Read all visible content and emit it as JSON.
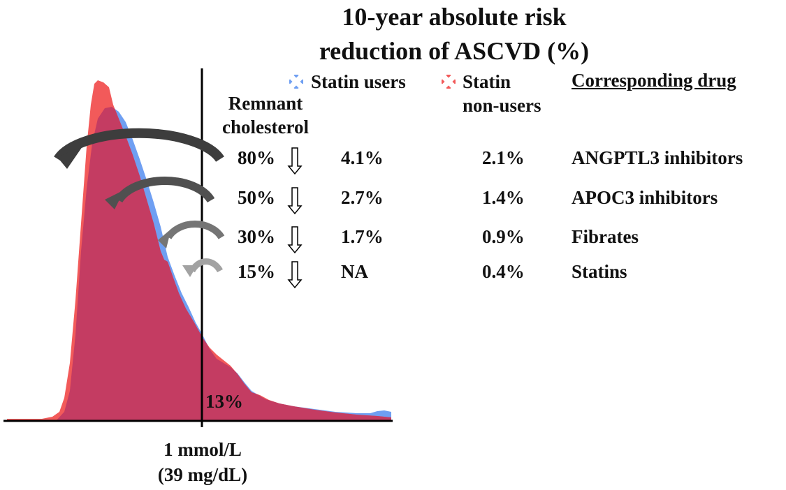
{
  "chart_data": {
    "type": "area",
    "title": "10-year absolute risk reduction of ASCVD (%)",
    "title_lines": [
      "10-year absolute risk",
      "reduction of ASCVD (%)"
    ],
    "xlabel_lines": [
      "1 mmol/L",
      "(39 mg/dL)"
    ],
    "cutoff_label": "1 mmol/L (39 mg/dL)",
    "above_cutoff_label": "13%",
    "legend": [
      {
        "name": "Statin users",
        "color": "#6f9ff2"
      },
      {
        "name": "Statin non-users",
        "name_lines": [
          "Statin",
          "non-users"
        ],
        "color": "#f25a5a"
      }
    ],
    "series": [
      {
        "name": "Statin users",
        "color": "#6f9ff2"
      },
      {
        "name": "Statin non-users",
        "color": "#f25a5a"
      }
    ],
    "overlap_color": "#c43c62",
    "table": {
      "reduction_header_lines": [
        "Remnant",
        "cholesterol"
      ],
      "drug_header": "Corresponding drug",
      "rows": [
        {
          "reduction": "80%",
          "users": "4.1%",
          "non_users": "2.1%",
          "drug": "ANGPTL3 inhibitors"
        },
        {
          "reduction": "50%",
          "users": "2.7%",
          "non_users": "1.4%",
          "drug": "APOC3 inhibitors"
        },
        {
          "reduction": "30%",
          "users": "1.7%",
          "non_users": "0.9%",
          "drug": "Fibrates"
        },
        {
          "reduction": "15%",
          "users": "NA",
          "non_users": "0.4%",
          "drug": "Statins"
        }
      ]
    }
  },
  "colors": {
    "arrow_shades": [
      "#3d3d3d",
      "#505050",
      "#757575",
      "#a2a2a2"
    ],
    "axis": "#000000"
  }
}
